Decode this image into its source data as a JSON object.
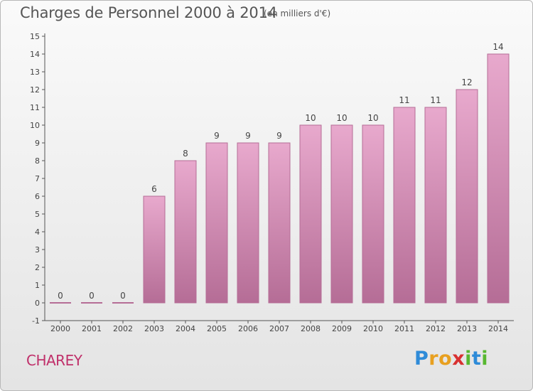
{
  "header": {
    "title": "Charges de Personnel 2000 à 2014",
    "subtitle": "(en milliers d'€)"
  },
  "footer": {
    "commune": "CHAREY",
    "brand_letters": [
      {
        "ch": "P",
        "color": "#2e8bd8"
      },
      {
        "ch": "r",
        "color": "#e8a020"
      },
      {
        "ch": "o",
        "color": "#e8a020"
      },
      {
        "ch": "x",
        "color": "#d83030"
      },
      {
        "ch": "i",
        "color": "#58b830"
      },
      {
        "ch": "t",
        "color": "#2e8bd8"
      },
      {
        "ch": "i",
        "color": "#58b830"
      }
    ]
  },
  "chart_data": {
    "type": "bar",
    "categories": [
      "2000",
      "2001",
      "2002",
      "2003",
      "2004",
      "2005",
      "2006",
      "2007",
      "2008",
      "2009",
      "2010",
      "2011",
      "2012",
      "2013",
      "2014"
    ],
    "values": [
      0,
      0,
      0,
      6,
      8,
      9,
      9,
      9,
      10,
      10,
      10,
      11,
      11,
      12,
      14
    ],
    "value_labels": [
      "0",
      "0",
      "0",
      "6",
      "8",
      "9",
      "9",
      "9",
      "10",
      "10",
      "10",
      "11",
      "11",
      "12",
      "14"
    ],
    "y_ticks": [
      "-1",
      "0",
      "1",
      "2",
      "3",
      "4",
      "5",
      "6",
      "7",
      "8",
      "9",
      "10",
      "11",
      "12",
      "13",
      "14",
      "15"
    ],
    "ylim": [
      -1,
      15
    ],
    "grid": false,
    "bar_color": "#d98fb8",
    "bar_color_dark": "#b56d96"
  }
}
